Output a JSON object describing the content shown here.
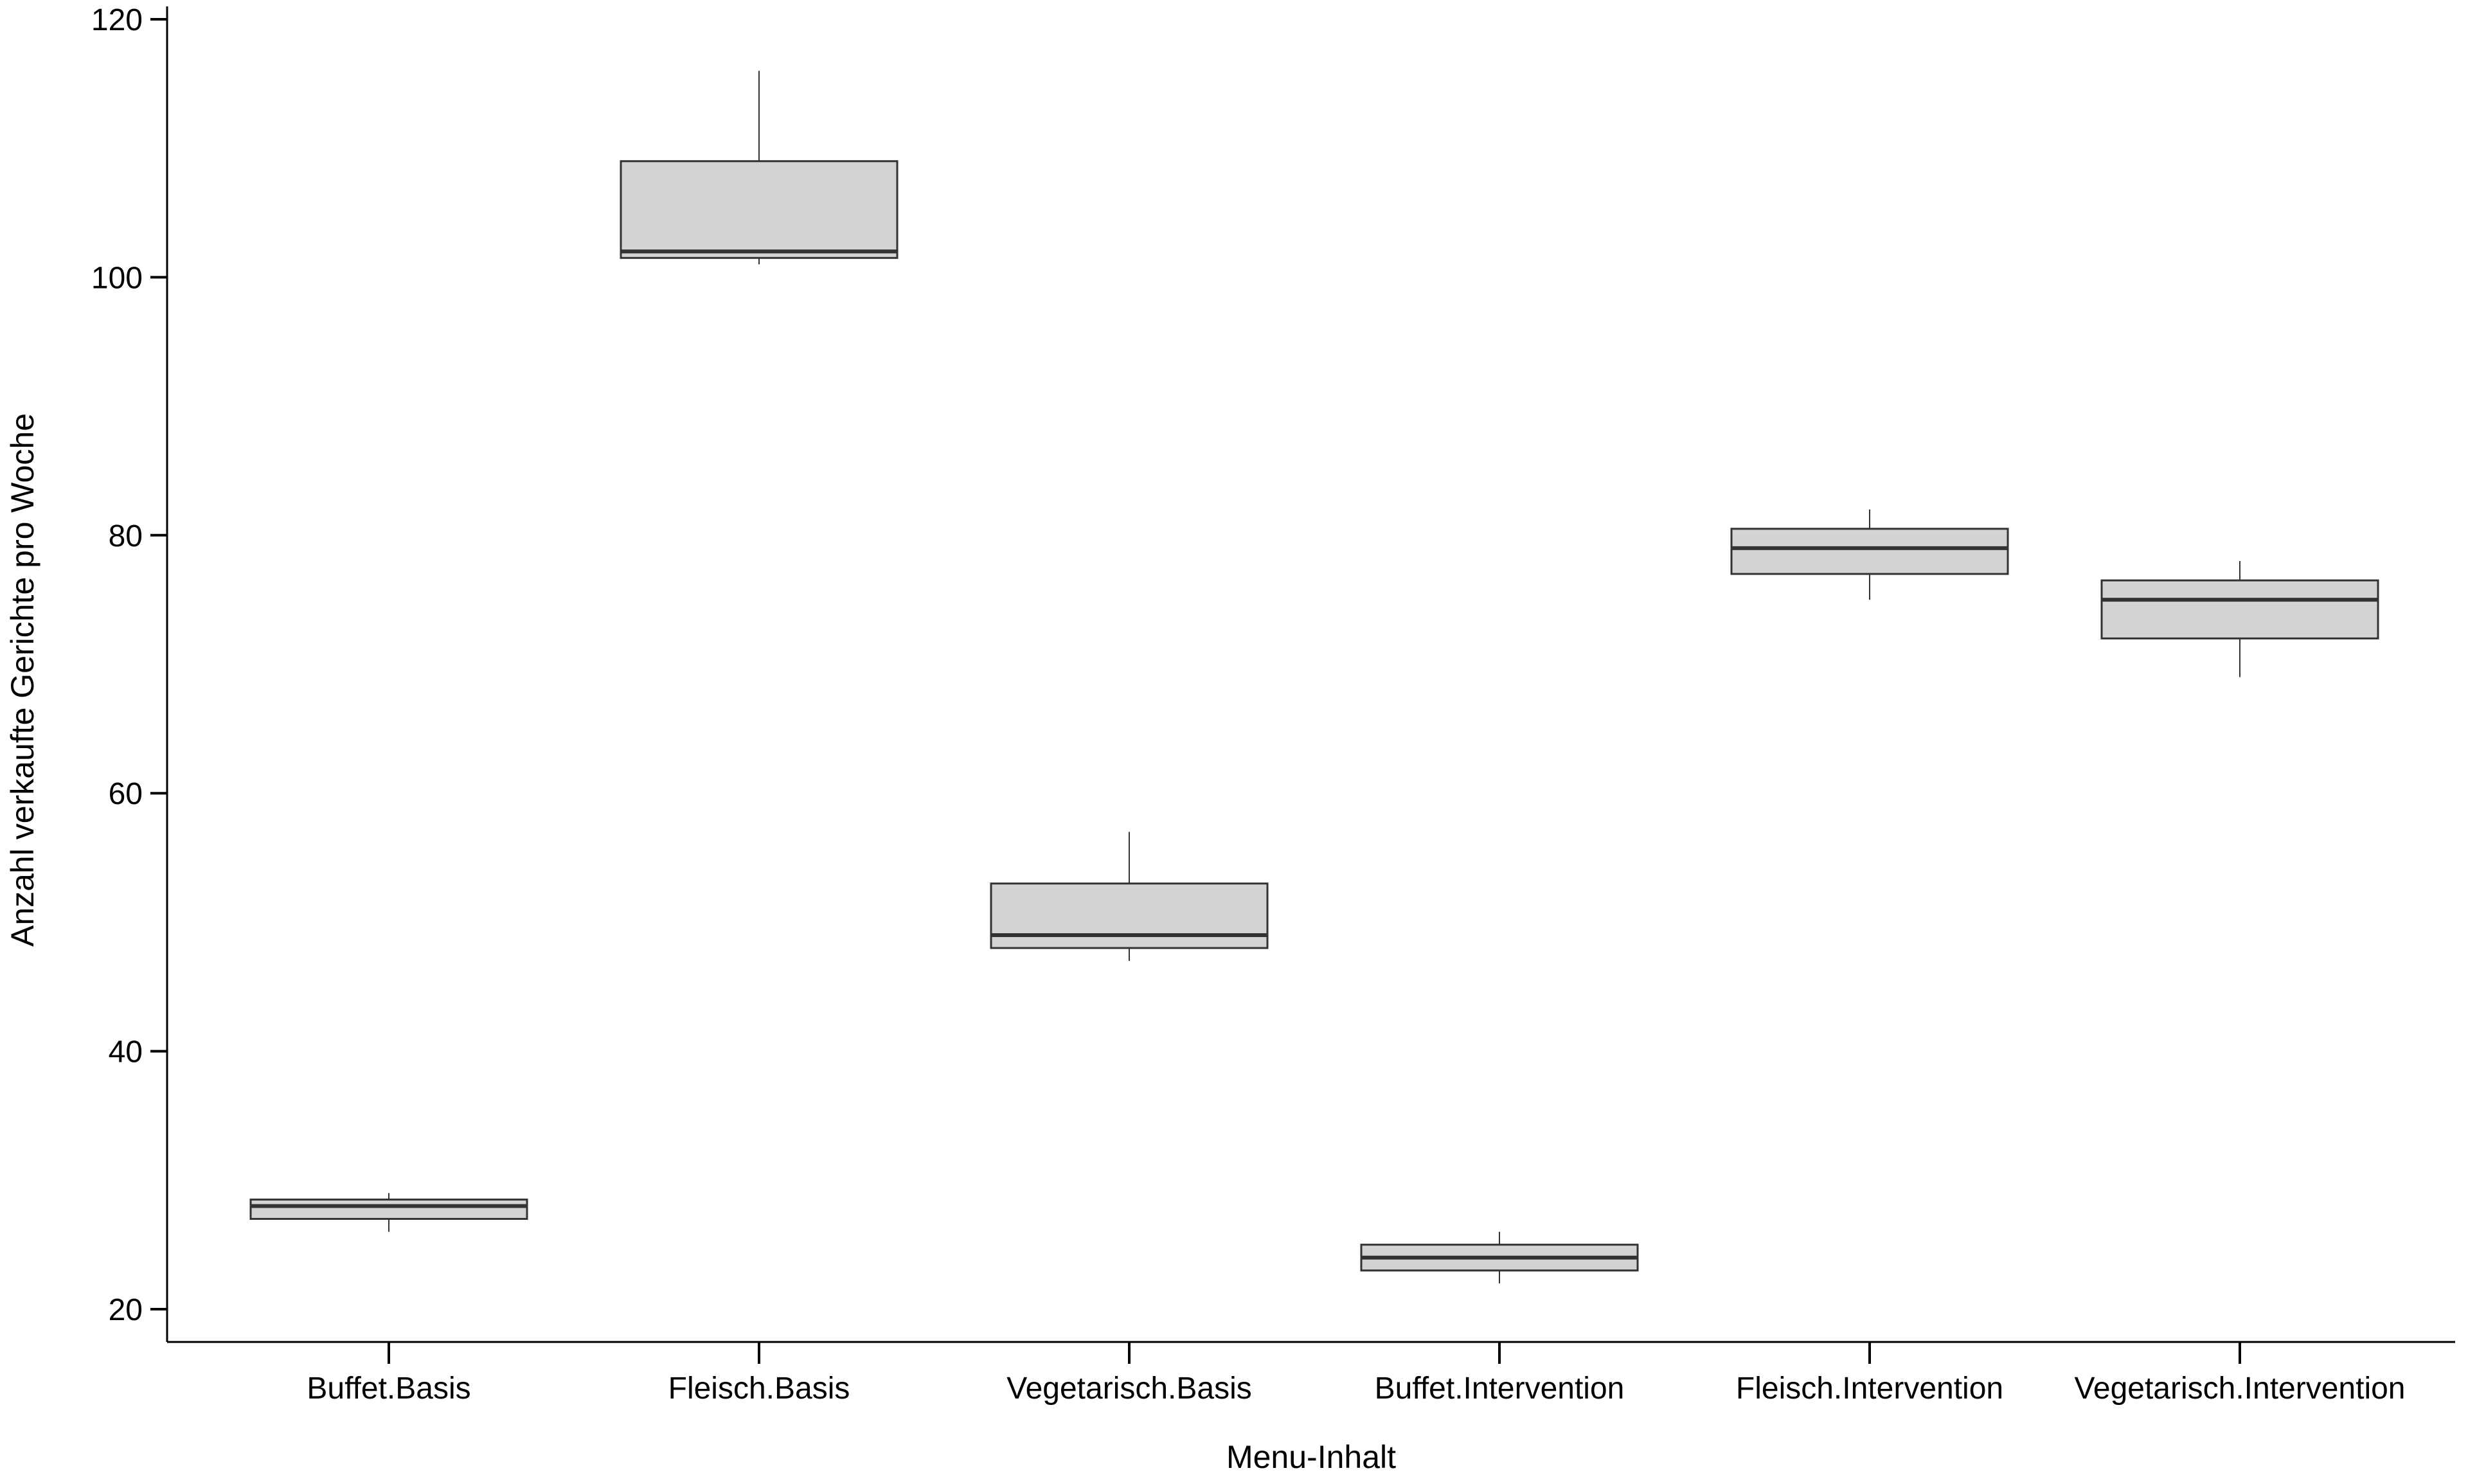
{
  "chart_data": {
    "type": "boxplot",
    "title": "",
    "xlabel": "Menu-Inhalt",
    "ylabel": "Anzahl verkaufte Gerichte pro Woche",
    "ylim": [
      17.4,
      121.5
    ],
    "yticks": [
      20,
      40,
      60,
      80,
      100,
      120
    ],
    "grid": false,
    "legend": "none",
    "box_fill": "#d3d3d3",
    "line_color": "#333333",
    "categories": [
      "Buffet.Basis",
      "Fleisch.Basis",
      "Vegetarisch.Basis",
      "Buffet.Intervention",
      "Fleisch.Intervention",
      "Vegetarisch.Intervention"
    ],
    "boxes": [
      {
        "category": "Buffet.Basis",
        "min": 26,
        "q1": 27,
        "median": 28,
        "q3": 28.5,
        "max": 29
      },
      {
        "category": "Fleisch.Basis",
        "min": 101,
        "q1": 101.5,
        "median": 102,
        "q3": 109,
        "max": 116
      },
      {
        "category": "Vegetarisch.Basis",
        "min": 47,
        "q1": 48,
        "median": 49,
        "q3": 53,
        "max": 57
      },
      {
        "category": "Buffet.Intervention",
        "min": 22,
        "q1": 23,
        "median": 24,
        "q3": 25,
        "max": 26
      },
      {
        "category": "Fleisch.Intervention",
        "min": 75,
        "q1": 77,
        "median": 79,
        "q3": 80.5,
        "max": 82
      },
      {
        "category": "Vegetarisch.Intervention",
        "min": 69,
        "q1": 72,
        "median": 75,
        "q3": 76.5,
        "max": 78
      }
    ]
  }
}
